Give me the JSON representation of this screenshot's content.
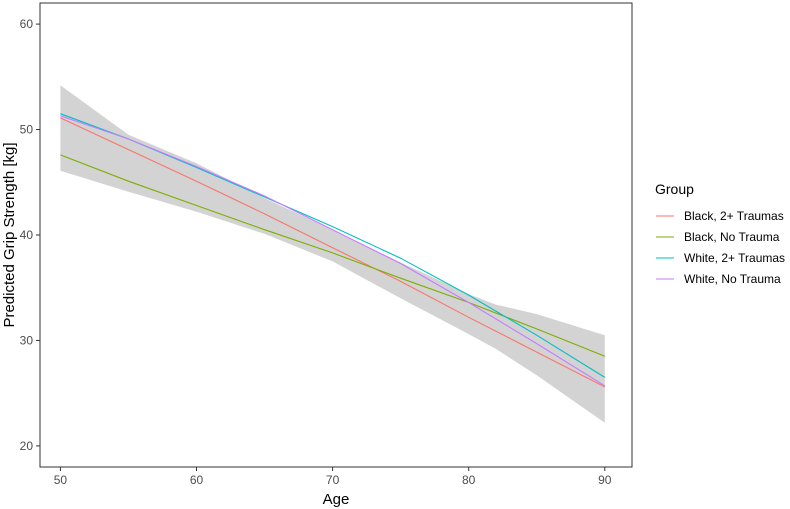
{
  "chart_data": {
    "type": "line",
    "title": "",
    "xlabel": "Age",
    "ylabel": "Predicted Grip Strength [kg]",
    "xlim": [
      48.5,
      92
    ],
    "ylim": [
      18,
      62
    ],
    "x_ticks": [
      50,
      60,
      70,
      80,
      90
    ],
    "y_ticks": [
      20,
      30,
      40,
      50,
      60
    ],
    "grid": false,
    "legend": {
      "title": "Group",
      "position": "right"
    },
    "confidence_band": {
      "color": "#d3d3d3",
      "x": [
        50,
        55,
        60,
        65,
        70,
        75,
        80,
        82,
        85,
        90
      ],
      "upper": [
        54.2,
        49.5,
        46.8,
        43.5,
        40.5,
        37.4,
        34.4,
        33.4,
        32.5,
        30.5
      ],
      "lower": [
        46.1,
        44.1,
        42.2,
        40.1,
        37.5,
        34.0,
        30.6,
        29.2,
        26.7,
        22.2
      ]
    },
    "series": [
      {
        "name": "Black, 2+ Traumas",
        "color": "#F8766D",
        "x": [
          50,
          55,
          60,
          65,
          70,
          75,
          80,
          85,
          90
        ],
        "values": [
          51.1,
          48.1,
          45.1,
          42.0,
          38.8,
          35.6,
          32.2,
          28.9,
          25.6
        ]
      },
      {
        "name": "Black, No Trauma",
        "color": "#7CAE00",
        "x": [
          50,
          55,
          60,
          65,
          70,
          75,
          80,
          85,
          90
        ],
        "values": [
          47.6,
          45.1,
          42.8,
          40.5,
          38.3,
          35.9,
          33.6,
          31.1,
          28.5
        ]
      },
      {
        "name": "White, 2+ Traumas",
        "color": "#00BFC4",
        "x": [
          50,
          55,
          60,
          65,
          70,
          75,
          80,
          85,
          90
        ],
        "values": [
          51.5,
          49.1,
          46.4,
          43.6,
          40.8,
          37.8,
          34.3,
          30.5,
          26.5
        ]
      },
      {
        "name": "White, No Trauma",
        "color": "#C77CFF",
        "x": [
          50,
          55,
          60,
          65,
          70,
          75,
          80,
          85,
          90
        ],
        "values": [
          51.3,
          49.1,
          46.5,
          43.7,
          40.5,
          37.3,
          33.6,
          29.7,
          25.7
        ]
      }
    ]
  }
}
